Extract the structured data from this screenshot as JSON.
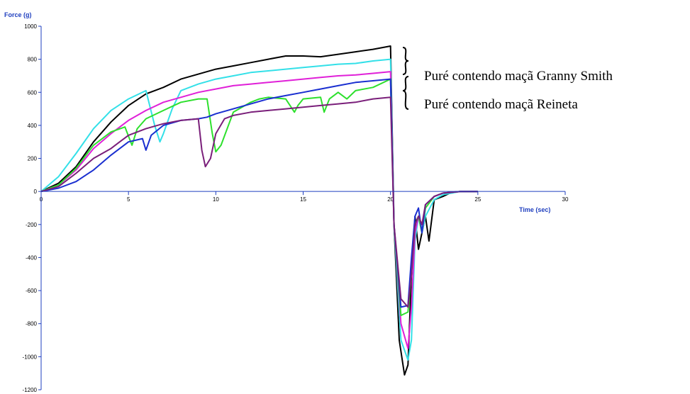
{
  "chart_data": {
    "type": "line",
    "title": "",
    "xlabel": "Time (sec)",
    "ylabel": "Force (g)",
    "xlim": [
      0,
      30
    ],
    "ylim": [
      -1200,
      1000
    ],
    "xticks": [
      0,
      5,
      10,
      15,
      20,
      25,
      30
    ],
    "yticks": [
      1000,
      800,
      600,
      400,
      200,
      0,
      -200,
      -400,
      -600,
      -800,
      -1000,
      -1200
    ],
    "grid": false,
    "axis_color": "#1f3fbf",
    "annotations": [
      {
        "text": "Puré contendo maçã Granny Smith",
        "group": "top"
      },
      {
        "text": "Puré contendo maçã Reineta",
        "group": "bottom"
      }
    ],
    "series": [
      {
        "color": "#000000",
        "group": "Granny Smith",
        "x": [
          0,
          1,
          2,
          3,
          4,
          5,
          6,
          6.5,
          7,
          8,
          9,
          10,
          11,
          12,
          13,
          14,
          15,
          16,
          17,
          18,
          19,
          20,
          20.2,
          20.5,
          20.8,
          21,
          21.2,
          21.4,
          21.6,
          21.8,
          22,
          22.2,
          22.5,
          23,
          23.5,
          24,
          24.5,
          25
        ],
        "y": [
          0,
          50,
          150,
          300,
          420,
          520,
          590,
          610,
          630,
          680,
          710,
          740,
          760,
          780,
          800,
          820,
          820,
          815,
          830,
          845,
          860,
          880,
          -200,
          -900,
          -1110,
          -1050,
          -500,
          -150,
          -350,
          -250,
          -150,
          -300,
          -50,
          -30,
          -5,
          0,
          0,
          0
        ]
      },
      {
        "color": "#33e0e8",
        "group": "Granny Smith",
        "x": [
          0,
          1,
          2,
          3,
          4,
          5,
          6,
          6.5,
          6.8,
          7,
          7.5,
          8,
          9,
          10,
          11,
          12,
          13,
          14,
          15,
          16,
          17,
          18,
          19,
          20,
          20.2,
          20.6,
          21,
          21.2,
          21.4,
          21.6,
          21.8,
          22,
          22.5,
          23,
          24,
          25
        ],
        "y": [
          0,
          90,
          230,
          380,
          490,
          560,
          610,
          400,
          300,
          350,
          500,
          610,
          650,
          680,
          700,
          720,
          730,
          740,
          750,
          760,
          770,
          775,
          790,
          800,
          -200,
          -900,
          -1020,
          -900,
          -300,
          -150,
          -250,
          -150,
          -50,
          -20,
          0,
          0
        ]
      },
      {
        "color": "#e020d8",
        "group": "Granny Smith",
        "x": [
          0,
          1,
          2,
          3,
          4,
          5,
          6,
          7,
          8,
          9,
          10,
          11,
          12,
          13,
          14,
          15,
          16,
          17,
          18,
          19,
          20,
          20.2,
          20.6,
          21,
          21.2,
          21.4,
          21.6,
          21.8,
          22,
          22.5,
          23,
          24,
          25
        ],
        "y": [
          0,
          40,
          130,
          260,
          350,
          430,
          490,
          540,
          570,
          600,
          620,
          640,
          650,
          660,
          670,
          680,
          690,
          700,
          705,
          715,
          725,
          -200,
          -800,
          -950,
          -700,
          -250,
          -150,
          -250,
          -100,
          -30,
          -10,
          0,
          0
        ]
      },
      {
        "color": "#2de02d",
        "group": "Reineta",
        "x": [
          0,
          1,
          2,
          3,
          4,
          4.8,
          5.2,
          5.5,
          6,
          7,
          8,
          9,
          9.5,
          9.8,
          10,
          10.3,
          11,
          12,
          12.5,
          13,
          14,
          14.5,
          14.7,
          15,
          16,
          16.2,
          16.5,
          17,
          17.5,
          18,
          19,
          20,
          20.2,
          20.6,
          21,
          21.2,
          21.4,
          21.6,
          21.8,
          22,
          22.5,
          23,
          24,
          25
        ],
        "y": [
          0,
          40,
          140,
          280,
          360,
          390,
          280,
          380,
          440,
          490,
          540,
          560,
          560,
          350,
          240,
          280,
          480,
          540,
          560,
          570,
          560,
          480,
          520,
          560,
          570,
          480,
          560,
          600,
          560,
          610,
          630,
          680,
          -200,
          -750,
          -730,
          -500,
          -200,
          -150,
          -250,
          -100,
          -30,
          -10,
          0,
          0
        ]
      },
      {
        "color": "#1a2fd0",
        "group": "Reineta",
        "x": [
          0,
          1,
          2,
          3,
          4,
          5,
          5.8,
          6,
          6.3,
          7,
          8,
          9,
          9.5,
          10,
          11,
          12,
          13,
          14,
          15,
          16,
          17,
          18,
          19,
          20,
          20.2,
          20.6,
          21,
          21.2,
          21.4,
          21.6,
          21.8,
          22,
          22.5,
          23,
          24,
          25
        ],
        "y": [
          0,
          20,
          60,
          130,
          220,
          300,
          320,
          250,
          340,
          400,
          430,
          440,
          450,
          470,
          500,
          530,
          560,
          580,
          600,
          620,
          640,
          660,
          670,
          680,
          -200,
          -700,
          -690,
          -400,
          -150,
          -100,
          -250,
          -80,
          -30,
          -10,
          0,
          0
        ]
      },
      {
        "color": "#7a1f7a",
        "group": "Reineta",
        "x": [
          0,
          1,
          2,
          3,
          4,
          4.5,
          5,
          6,
          7,
          8,
          9,
          9.2,
          9.4,
          9.7,
          10,
          10.5,
          11,
          12,
          13,
          14,
          15,
          16,
          17,
          18,
          19,
          20,
          20.2,
          20.6,
          21,
          21.2,
          21.4,
          21.6,
          21.8,
          22,
          22.5,
          23,
          24,
          25
        ],
        "y": [
          0,
          30,
          110,
          200,
          260,
          300,
          340,
          380,
          410,
          430,
          440,
          250,
          150,
          200,
          350,
          440,
          460,
          480,
          490,
          500,
          510,
          520,
          530,
          540,
          560,
          570,
          -200,
          -650,
          -700,
          -500,
          -200,
          -150,
          -200,
          -80,
          -30,
          -10,
          0,
          0
        ]
      }
    ]
  }
}
